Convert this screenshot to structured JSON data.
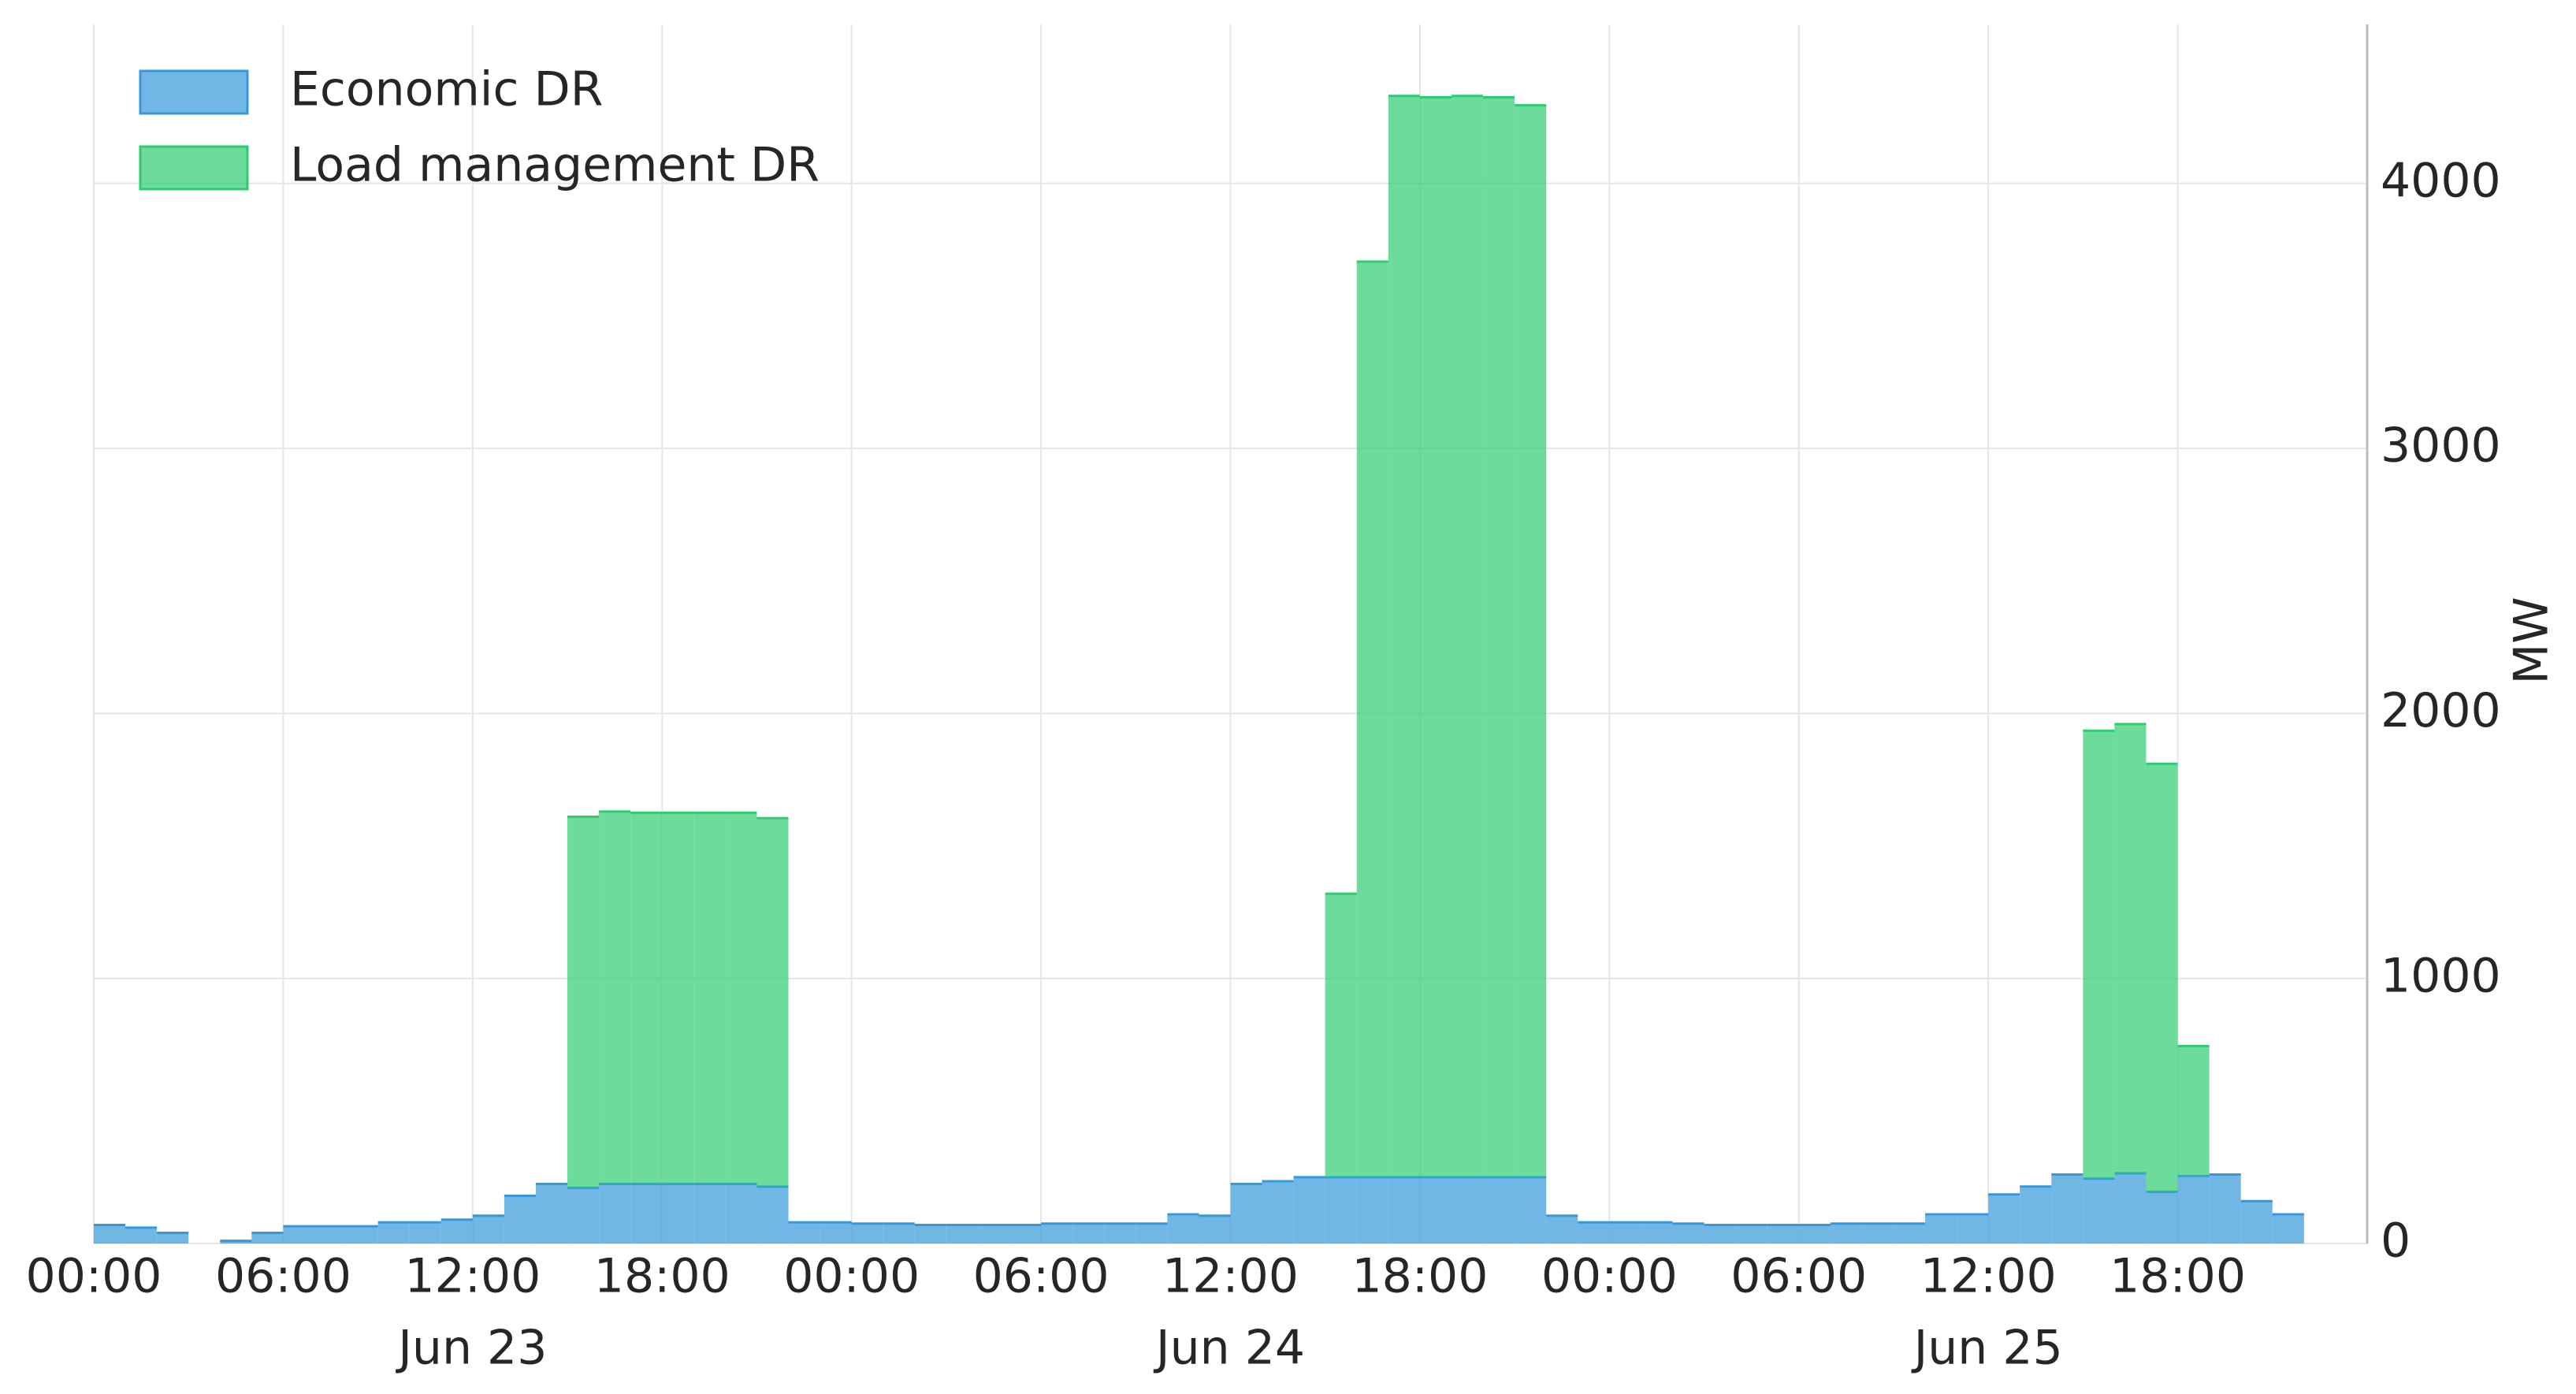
{
  "chart_data": {
    "type": "step-area",
    "stacked": true,
    "y_axis_side": "right",
    "ylabel": "MW",
    "grid": true,
    "legend": "upper left",
    "x": [
      0,
      1,
      2,
      3,
      4,
      5,
      6,
      7,
      8,
      9,
      10,
      11,
      12,
      13,
      14,
      15,
      16,
      17,
      18,
      19,
      20,
      21,
      22,
      23,
      24,
      25,
      26,
      27,
      28,
      29,
      30,
      31,
      32,
      33,
      34,
      35,
      36,
      37,
      38,
      39,
      40,
      41,
      42,
      43,
      44,
      45,
      46,
      47,
      48,
      49,
      50,
      51,
      52,
      53,
      54,
      55,
      56,
      57,
      58,
      59,
      60,
      61,
      62,
      63,
      64,
      65,
      66,
      67,
      68,
      69,
      70,
      71
    ],
    "xlim": [
      0,
      72
    ],
    "xticks": [
      {
        "value": 0,
        "label": "00:00"
      },
      {
        "value": 6,
        "label": "06:00"
      },
      {
        "value": 12,
        "label": "12:00"
      },
      {
        "value": 18,
        "label": "18:00"
      },
      {
        "value": 24,
        "label": "00:00"
      },
      {
        "value": 30,
        "label": "06:00"
      },
      {
        "value": 36,
        "label": "12:00"
      },
      {
        "value": 42,
        "label": "18:00"
      },
      {
        "value": 48,
        "label": "00:00"
      },
      {
        "value": 54,
        "label": "06:00"
      },
      {
        "value": 60,
        "label": "12:00"
      },
      {
        "value": 66,
        "label": "18:00"
      }
    ],
    "xticks_minor_labels": [
      {
        "value": 12,
        "label": "Jun 23"
      },
      {
        "value": 36,
        "label": "Jun 24"
      },
      {
        "value": 60,
        "label": "Jun 25"
      }
    ],
    "ylim": [
      0,
      4600
    ],
    "yticks": [
      0,
      1000,
      2000,
      3000,
      4000
    ],
    "series": [
      {
        "name": "Economic DR",
        "color": "#3498db",
        "values": [
          70,
          60,
          40,
          0,
          10,
          40,
          65,
          65,
          65,
          80,
          80,
          90,
          105,
          180,
          225,
          210,
          225,
          225,
          225,
          225,
          225,
          215,
          80,
          80,
          75,
          75,
          70,
          70,
          70,
          70,
          75,
          75,
          75,
          75,
          110,
          105,
          225,
          235,
          250,
          250,
          250,
          250,
          250,
          250,
          250,
          250,
          105,
          80,
          80,
          80,
          75,
          70,
          70,
          70,
          70,
          75,
          75,
          75,
          110,
          110,
          185,
          215,
          260,
          245,
          265,
          195,
          255,
          260,
          160,
          110,
          0,
          0
        ]
      },
      {
        "name": "Load management DR",
        "color": "#2ecc71",
        "values": [
          0,
          0,
          0,
          0,
          0,
          0,
          0,
          0,
          0,
          0,
          0,
          0,
          0,
          0,
          0,
          1400,
          1405,
          1400,
          1400,
          1400,
          1400,
          1390,
          0,
          0,
          0,
          0,
          0,
          0,
          0,
          0,
          0,
          0,
          0,
          0,
          0,
          0,
          0,
          0,
          0,
          1070,
          3455,
          4080,
          4075,
          4080,
          4075,
          4045,
          0,
          0,
          0,
          0,
          0,
          0,
          0,
          0,
          0,
          0,
          0,
          0,
          0,
          0,
          0,
          0,
          0,
          1690,
          1695,
          1615,
          490,
          0,
          0,
          0,
          0,
          0
        ]
      }
    ]
  }
}
